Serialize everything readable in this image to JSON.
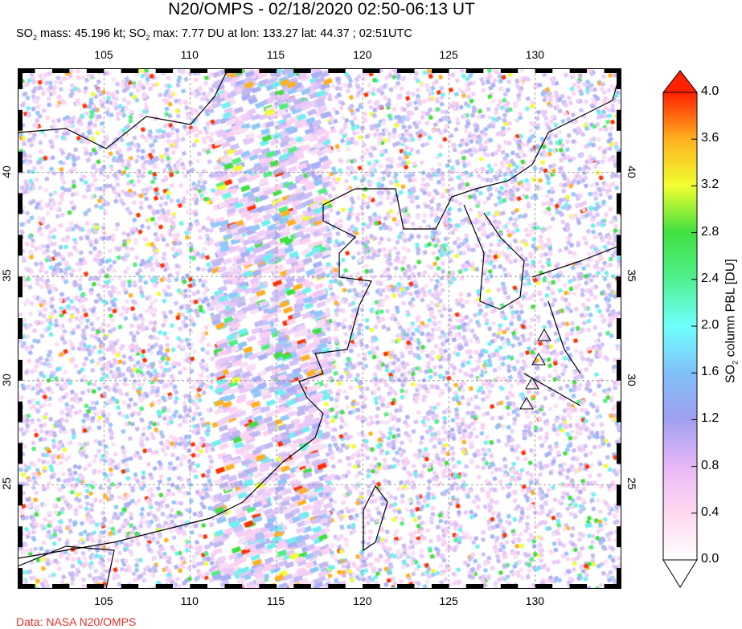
{
  "title": "N20/OMPS - 02/18/2020 02:50-06:13 UT",
  "subtitle": {
    "mass_label": "SO",
    "mass_text": " mass: 45.196 kt; ",
    "max_label": "SO",
    "max_text": " max: 7.77 DU at lon: 133.27 lat: 44.37 ; 02:51UTC",
    "sub": "2"
  },
  "map": {
    "lon_ticks": [
      "105",
      "110",
      "115",
      "120",
      "125",
      "130"
    ],
    "lat_ticks": [
      "40",
      "35",
      "30",
      "25"
    ],
    "lon_range": [
      100,
      135
    ],
    "lat_range": [
      20,
      45
    ]
  },
  "colorbar": {
    "title_prefix": "SO",
    "title_sub": "2",
    "title_suffix": " column PBL [DU]",
    "labels": [
      "4.0",
      "3.6",
      "3.2",
      "2.8",
      "2.4",
      "2.0",
      "1.6",
      "1.2",
      "0.8",
      "0.4",
      "0.0"
    ],
    "range": [
      0,
      4
    ],
    "stops": [
      "#ffffff",
      "#ffd8f0",
      "#e8b8f8",
      "#a0a0f0",
      "#80c0f8",
      "#70ffff",
      "#50f090",
      "#40e040",
      "#f0ff30",
      "#ffb020",
      "#ff2000"
    ]
  },
  "credit": "Data: NASA N20/OMPS"
}
